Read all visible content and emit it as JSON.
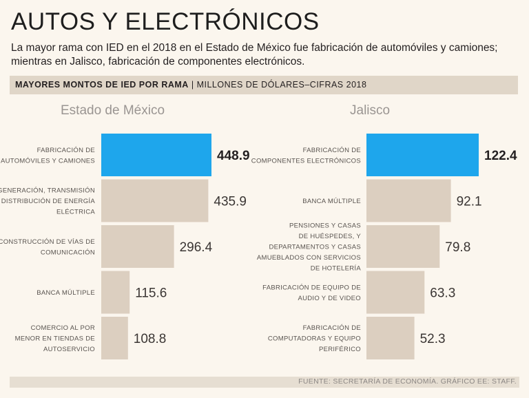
{
  "header": {
    "title": "AUTOS Y ELECTRÓNICOS",
    "subtitle": "La mayor rama con IED en el 2018 en el Estado de México fue fabricación de automóviles y camiones; mientras en Jalisco, fabricación de componentes electrónicos."
  },
  "band": {
    "strong": "MAYORES MONTOS DE IED POR RAMA",
    "separator": "|",
    "light": "MILLONES DE DÓLARES–CIFRAS 2018"
  },
  "colors": {
    "highlight": "#1ea6ec",
    "bar": "#dccfc0",
    "background": "#fbf6ee"
  },
  "chart_data": [
    {
      "type": "bar",
      "orientation": "horizontal",
      "title": "Estado de México",
      "unit": "Millones de dólares",
      "categories": [
        [
          "FABRICACIÓN DE",
          "AUTOMÓVILES Y CAMIONES"
        ],
        [
          "GENERACIÓN, TRANSMISIÓN",
          "Y DISTRIBUCIÓN DE ENERGÍA",
          "ELÉCTRICA"
        ],
        [
          "CONSTRUCCIÓN DE VÍAS DE",
          "COMUNICACIÓN"
        ],
        [
          "BANCA MÚLTIPLE"
        ],
        [
          "COMERCIO AL POR",
          "MENOR EN TIENDAS DE",
          "AUTOSERVICIO"
        ]
      ],
      "values": [
        448.9,
        435.9,
        296.4,
        115.6,
        108.8
      ],
      "value_labels": [
        "448.9",
        "435.9",
        "296.4",
        "115.6",
        "108.8"
      ],
      "highlight_index": 0
    },
    {
      "type": "bar",
      "orientation": "horizontal",
      "title": "Jalisco",
      "unit": "Millones de dólares",
      "categories": [
        [
          "FABRICACIÓN DE",
          "COMPONENTES ELECTRÓNICOS"
        ],
        [
          "BANCA MÚLTIPLE"
        ],
        [
          "PENSIONES Y CASAS",
          "DE HUÉSPEDES, Y",
          "DEPARTAMENTOS Y CASAS",
          "AMUEBLADOS CON SERVICIOS",
          "DE HOTELERÍA"
        ],
        [
          "FABRICACIÓN DE EQUIPO DE",
          "AUDIO Y DE VIDEO"
        ],
        [
          "FABRICACIÓN DE",
          "COMPUTADORAS Y EQUIPO",
          "PERIFÉRICO"
        ]
      ],
      "values": [
        122.4,
        92.1,
        79.8,
        63.3,
        52.3
      ],
      "value_labels": [
        "122.4",
        "92.1",
        "79.8",
        "63.3",
        "52.3"
      ],
      "highlight_index": 0
    }
  ],
  "footer": {
    "source": "FUENTE: SECRETARÍA DE ECONOMÍA. GRÁFICO EE: STAFF."
  }
}
